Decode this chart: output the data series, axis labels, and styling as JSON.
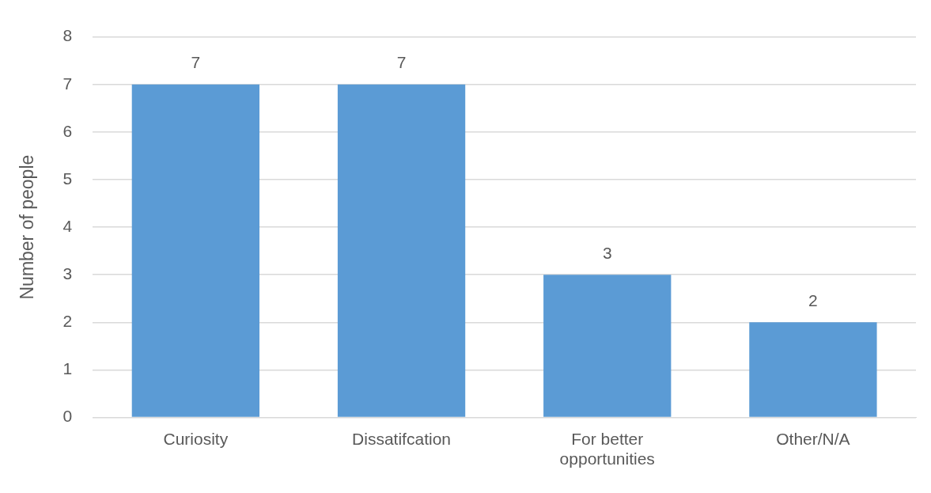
{
  "chart_data": {
    "type": "bar",
    "ylabel": "Number of people",
    "categories": [
      "Curiosity",
      "Dissatifcation",
      "For better opportunities",
      "Other/N/A"
    ],
    "values": [
      7,
      7,
      3,
      2
    ],
    "color": "#5b9bd5",
    "ylim": [
      0,
      8
    ],
    "yticks": [
      0,
      1,
      2,
      3,
      4,
      5,
      6,
      7,
      8
    ],
    "grid": "y",
    "data_labels": true,
    "legend": false
  }
}
